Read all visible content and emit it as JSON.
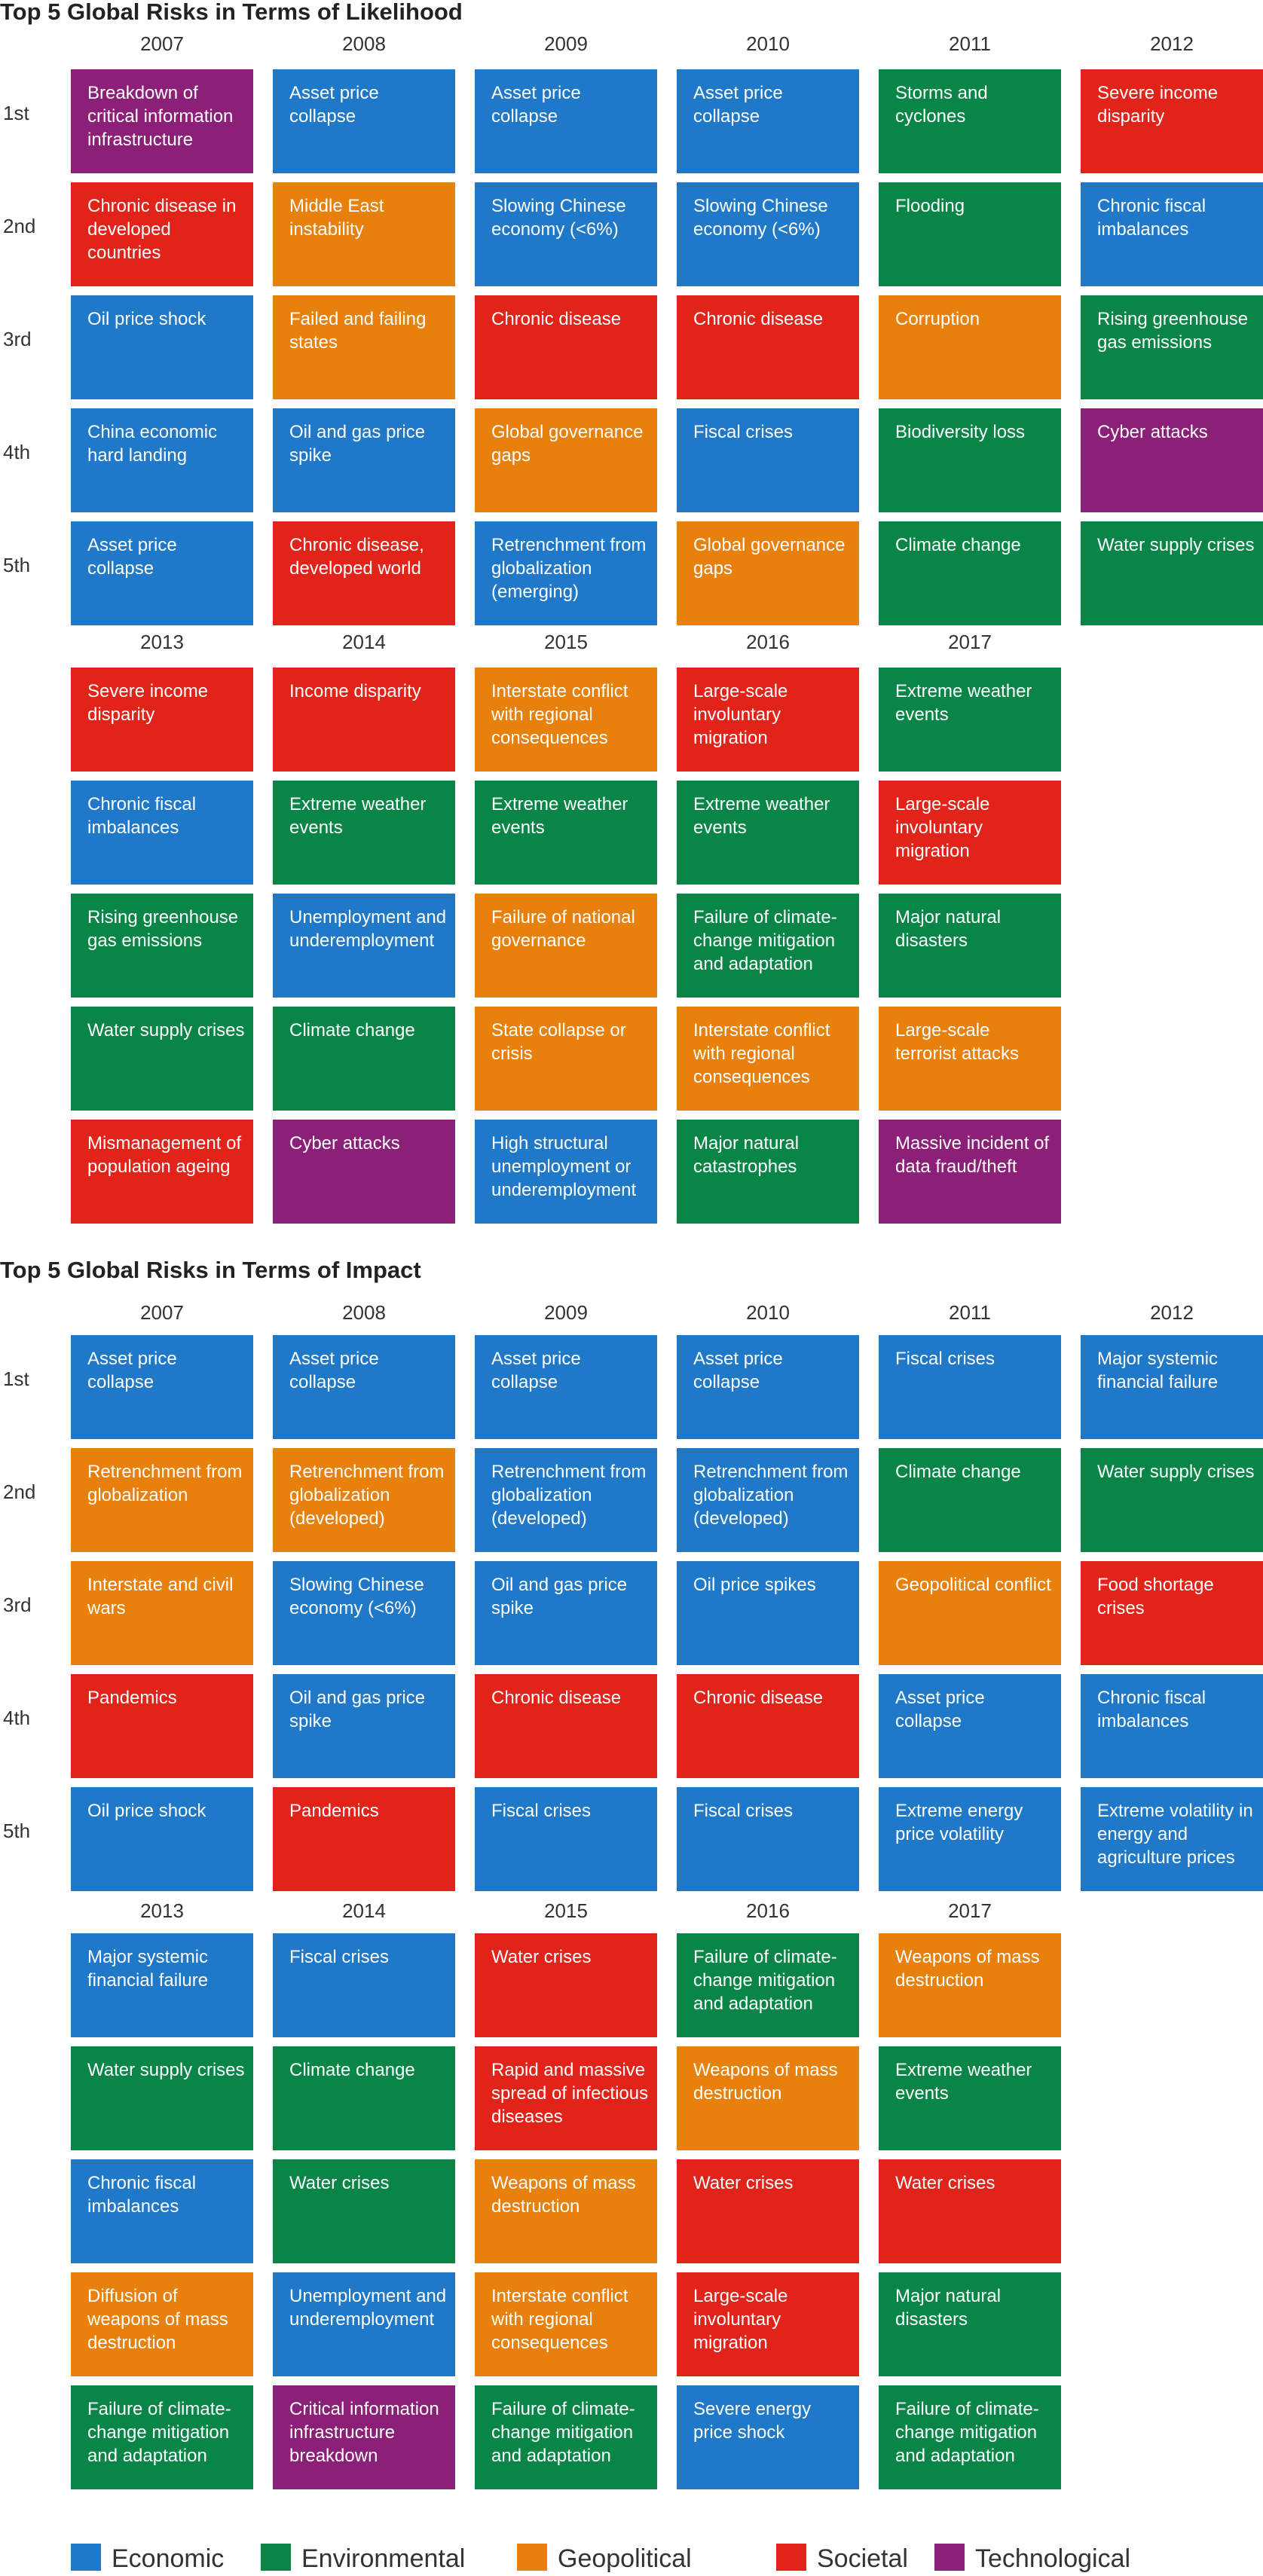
{
  "chart_data": [
    {
      "type": "table",
      "title": "Top 5 Global Risks in Terms of Likelihood",
      "ranks": [
        "1st",
        "2nd",
        "3rd",
        "4th",
        "5th"
      ],
      "years": [
        {
          "year": "2007",
          "risks": [
            {
              "label": "Breakdown of critical information infrastructure",
              "category": "Technological"
            },
            {
              "label": "Chronic disease in developed countries",
              "category": "Societal"
            },
            {
              "label": "Oil price shock",
              "category": "Economic"
            },
            {
              "label": "China economic hard landing",
              "category": "Economic"
            },
            {
              "label": "Asset price collapse",
              "category": "Economic"
            }
          ]
        },
        {
          "year": "2008",
          "risks": [
            {
              "label": "Asset price collapse",
              "category": "Economic"
            },
            {
              "label": "Middle East instability",
              "category": "Geopolitical"
            },
            {
              "label": "Failed and failing states",
              "category": "Geopolitical"
            },
            {
              "label": "Oil and gas price spike",
              "category": "Economic"
            },
            {
              "label": "Chronic disease, developed world",
              "category": "Societal"
            }
          ]
        },
        {
          "year": "2009",
          "risks": [
            {
              "label": "Asset price collapse",
              "category": "Economic"
            },
            {
              "label": "Slowing Chinese economy (<6%)",
              "category": "Economic"
            },
            {
              "label": "Chronic disease",
              "category": "Societal"
            },
            {
              "label": "Global governance gaps",
              "category": "Geopolitical"
            },
            {
              "label": "Retrenchment from globalization (emerging)",
              "category": "Economic"
            }
          ]
        },
        {
          "year": "2010",
          "risks": [
            {
              "label": "Asset price collapse",
              "category": "Economic"
            },
            {
              "label": "Slowing Chinese economy (<6%)",
              "category": "Economic"
            },
            {
              "label": "Chronic disease",
              "category": "Societal"
            },
            {
              "label": "Fiscal crises",
              "category": "Economic"
            },
            {
              "label": "Global governance gaps",
              "category": "Geopolitical"
            }
          ]
        },
        {
          "year": "2011",
          "risks": [
            {
              "label": "Storms and cyclones",
              "category": "Environmental"
            },
            {
              "label": "Flooding",
              "category": "Environmental"
            },
            {
              "label": "Corruption",
              "category": "Geopolitical"
            },
            {
              "label": "Biodiversity loss",
              "category": "Environmental"
            },
            {
              "label": "Climate change",
              "category": "Environmental"
            }
          ]
        },
        {
          "year": "2012",
          "risks": [
            {
              "label": "Severe income disparity",
              "category": "Societal"
            },
            {
              "label": "Chronic fiscal imbalances",
              "category": "Economic"
            },
            {
              "label": "Rising greenhouse gas emissions",
              "category": "Environmental"
            },
            {
              "label": "Cyber attacks",
              "category": "Technological"
            },
            {
              "label": "Water supply crises",
              "category": "Environmental"
            }
          ]
        },
        {
          "year": "2013",
          "risks": [
            {
              "label": "Severe income disparity",
              "category": "Societal"
            },
            {
              "label": "Chronic fiscal imbalances",
              "category": "Economic"
            },
            {
              "label": "Rising greenhouse gas emissions",
              "category": "Environmental"
            },
            {
              "label": "Water supply crises",
              "category": "Environmental"
            },
            {
              "label": "Mismanagement of population ageing",
              "category": "Societal"
            }
          ]
        },
        {
          "year": "2014",
          "risks": [
            {
              "label": "Income disparity",
              "category": "Societal"
            },
            {
              "label": "Extreme weather events",
              "category": "Environmental"
            },
            {
              "label": "Unemployment and underemployment",
              "category": "Economic"
            },
            {
              "label": "Climate change",
              "category": "Environmental"
            },
            {
              "label": "Cyber attacks",
              "category": "Technological"
            }
          ]
        },
        {
          "year": "2015",
          "risks": [
            {
              "label": "Interstate conflict with regional consequences",
              "category": "Geopolitical"
            },
            {
              "label": "Extreme weather events",
              "category": "Environmental"
            },
            {
              "label": "Failure of national governance",
              "category": "Geopolitical"
            },
            {
              "label": "State collapse or crisis",
              "category": "Geopolitical"
            },
            {
              "label": "High structural unemployment or underemployment",
              "category": "Economic"
            }
          ]
        },
        {
          "year": "2016",
          "risks": [
            {
              "label": "Large-scale involuntary migration",
              "category": "Societal"
            },
            {
              "label": "Extreme weather events",
              "category": "Environmental"
            },
            {
              "label": "Failure of climate-change mitigation and adaptation",
              "category": "Environmental"
            },
            {
              "label": "Interstate conflict with regional consequences",
              "category": "Geopolitical"
            },
            {
              "label": "Major natural catastrophes",
              "category": "Environmental"
            }
          ]
        },
        {
          "year": "2017",
          "risks": [
            {
              "label": "Extreme weather events",
              "category": "Environmental"
            },
            {
              "label": "Large-scale involuntary migration",
              "category": "Societal"
            },
            {
              "label": "Major natural disasters",
              "category": "Environmental"
            },
            {
              "label": "Large-scale terrorist attacks",
              "category": "Geopolitical"
            },
            {
              "label": "Massive incident of data fraud/theft",
              "category": "Technological"
            }
          ]
        }
      ]
    },
    {
      "type": "table",
      "title": "Top 5 Global Risks in Terms of Impact",
      "ranks": [
        "1st",
        "2nd",
        "3rd",
        "4th",
        "5th"
      ],
      "years": [
        {
          "year": "2007",
          "risks": [
            {
              "label": "Asset price collapse",
              "category": "Economic"
            },
            {
              "label": "Retrenchment from globalization",
              "category": "Geopolitical"
            },
            {
              "label": "Interstate and civil wars",
              "category": "Geopolitical"
            },
            {
              "label": "Pandemics",
              "category": "Societal"
            },
            {
              "label": "Oil price shock",
              "category": "Economic"
            }
          ]
        },
        {
          "year": "2008",
          "risks": [
            {
              "label": "Asset price collapse",
              "category": "Economic"
            },
            {
              "label": "Retrenchment from globalization (developed)",
              "category": "Geopolitical"
            },
            {
              "label": "Slowing Chinese economy (<6%)",
              "category": "Economic"
            },
            {
              "label": "Oil and gas price spike",
              "category": "Economic"
            },
            {
              "label": "Pandemics",
              "category": "Societal"
            }
          ]
        },
        {
          "year": "2009",
          "risks": [
            {
              "label": "Asset price collapse",
              "category": "Economic"
            },
            {
              "label": "Retrenchment from globalization (developed)",
              "category": "Economic"
            },
            {
              "label": "Oil and gas price spike",
              "category": "Economic"
            },
            {
              "label": "Chronic disease",
              "category": "Societal"
            },
            {
              "label": "Fiscal crises",
              "category": "Economic"
            }
          ]
        },
        {
          "year": "2010",
          "risks": [
            {
              "label": "Asset price collapse",
              "category": "Economic"
            },
            {
              "label": "Retrenchment from globalization (developed)",
              "category": "Economic"
            },
            {
              "label": "Oil price spikes",
              "category": "Economic"
            },
            {
              "label": "Chronic disease",
              "category": "Societal"
            },
            {
              "label": "Fiscal crises",
              "category": "Economic"
            }
          ]
        },
        {
          "year": "2011",
          "risks": [
            {
              "label": "Fiscal crises",
              "category": "Economic"
            },
            {
              "label": "Climate change",
              "category": "Environmental"
            },
            {
              "label": "Geopolitical conflict",
              "category": "Geopolitical"
            },
            {
              "label": "Asset price collapse",
              "category": "Economic"
            },
            {
              "label": "Extreme energy price volatility",
              "category": "Economic"
            }
          ]
        },
        {
          "year": "2012",
          "risks": [
            {
              "label": "Major systemic financial failure",
              "category": "Economic"
            },
            {
              "label": "Water supply crises",
              "category": "Environmental"
            },
            {
              "label": "Food shortage crises",
              "category": "Societal"
            },
            {
              "label": "Chronic fiscal imbalances",
              "category": "Economic"
            },
            {
              "label": "Extreme volatility in energy and agriculture prices",
              "category": "Economic"
            }
          ]
        },
        {
          "year": "2013",
          "risks": [
            {
              "label": "Major systemic financial failure",
              "category": "Economic"
            },
            {
              "label": "Water supply crises",
              "category": "Environmental"
            },
            {
              "label": "Chronic fiscal imbalances",
              "category": "Economic"
            },
            {
              "label": "Diffusion of weapons of mass destruction",
              "category": "Geopolitical"
            },
            {
              "label": "Failure of climate-change mitigation and adaptation",
              "category": "Environmental"
            }
          ]
        },
        {
          "year": "2014",
          "risks": [
            {
              "label": "Fiscal crises",
              "category": "Economic"
            },
            {
              "label": "Climate change",
              "category": "Environmental"
            },
            {
              "label": "Water crises",
              "category": "Environmental"
            },
            {
              "label": "Unemployment and underemployment",
              "category": "Economic"
            },
            {
              "label": "Critical information infrastructure breakdown",
              "category": "Technological"
            }
          ]
        },
        {
          "year": "2015",
          "risks": [
            {
              "label": "Water crises",
              "category": "Societal"
            },
            {
              "label": "Rapid and massive spread of infectious diseases",
              "category": "Societal"
            },
            {
              "label": "Weapons of mass destruction",
              "category": "Geopolitical"
            },
            {
              "label": "Interstate conflict with regional consequences",
              "category": "Geopolitical"
            },
            {
              "label": "Failure of climate-change mitigation and adaptation",
              "category": "Environmental"
            }
          ]
        },
        {
          "year": "2016",
          "risks": [
            {
              "label": "Failure of climate-change mitigation and adaptation",
              "category": "Environmental"
            },
            {
              "label": "Weapons of mass destruction",
              "category": "Geopolitical"
            },
            {
              "label": "Water crises",
              "category": "Societal"
            },
            {
              "label": "Large-scale involuntary migration",
              "category": "Societal"
            },
            {
              "label": "Severe energy price shock",
              "category": "Economic"
            }
          ]
        },
        {
          "year": "2017",
          "risks": [
            {
              "label": "Weapons of mass destruction",
              "category": "Geopolitical"
            },
            {
              "label": "Extreme weather events",
              "category": "Environmental"
            },
            {
              "label": "Water crises",
              "category": "Societal"
            },
            {
              "label": "Major natural disasters",
              "category": "Environmental"
            },
            {
              "label": "Failure of climate-change mitigation and adaptation",
              "category": "Environmental"
            }
          ]
        }
      ]
    }
  ],
  "legend": [
    {
      "label": "Economic",
      "color": "#1f78c8"
    },
    {
      "label": "Environmental",
      "color": "#0a8548"
    },
    {
      "label": "Geopolitical",
      "color": "#e8800e"
    },
    {
      "label": "Societal",
      "color": "#e2231a"
    },
    {
      "label": "Technological",
      "color": "#8c1f77"
    }
  ]
}
